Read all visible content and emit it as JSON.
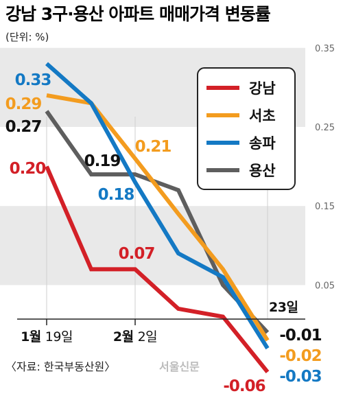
{
  "header": {
    "title": "강남 3구·용산 아파트 매매가격 변동률",
    "unit": "(단위: %)"
  },
  "footer": {
    "source": "〈자료: 한국부동산원〉",
    "watermark": "서울신문"
  },
  "chart_data": {
    "type": "line",
    "title": "강남 3구·용산 아파트 매매가격 변동률",
    "xlabel": "",
    "ylabel": "",
    "ylim": [
      -0.1,
      0.35
    ],
    "y_ticks": [
      "0.35",
      "0.25",
      "0.15",
      "0.05"
    ],
    "y_tick_values": [
      0.35,
      0.25,
      0.15,
      0.05
    ],
    "x_tick_labels": [
      {
        "index": 0,
        "month": "1월",
        "day": "19일"
      },
      {
        "index": 2,
        "month": "2월",
        "day": "2일"
      },
      {
        "index": 5,
        "month": "",
        "day": "23일"
      }
    ],
    "grid": "horizontal bands",
    "legend_position": "top-right",
    "series": [
      {
        "name": "강남",
        "color": "#d32027",
        "values": [
          0.2,
          0.07,
          0.07,
          0.02,
          0.01,
          -0.06
        ],
        "labels": [
          {
            "index": 0,
            "text": "0.20"
          },
          {
            "index": 2,
            "text": "0.07"
          },
          {
            "index": 5,
            "text": "-0.06"
          }
        ]
      },
      {
        "name": "서초",
        "color": "#f39c1f",
        "values": [
          0.29,
          0.28,
          0.21,
          0.14,
          0.07,
          -0.02
        ],
        "labels": [
          {
            "index": 0,
            "text": "0.29"
          },
          {
            "index": 2,
            "text": "0.21"
          },
          {
            "index": 5,
            "text": "-0.02"
          }
        ]
      },
      {
        "name": "송파",
        "color": "#1479c4",
        "values": [
          0.33,
          0.28,
          0.18,
          0.09,
          0.06,
          -0.03
        ],
        "labels": [
          {
            "index": 0,
            "text": "0.33"
          },
          {
            "index": 2,
            "text": "0.18"
          },
          {
            "index": 5,
            "text": "-0.03"
          }
        ]
      },
      {
        "name": "용산",
        "color": "#5e5e5e",
        "values": [
          0.27,
          0.19,
          0.19,
          0.17,
          0.05,
          -0.01
        ],
        "labels": [
          {
            "index": 0,
            "text": "0.27"
          },
          {
            "index": 1,
            "text": "0.19"
          },
          {
            "index": 5,
            "text": "-0.01"
          }
        ]
      }
    ]
  }
}
